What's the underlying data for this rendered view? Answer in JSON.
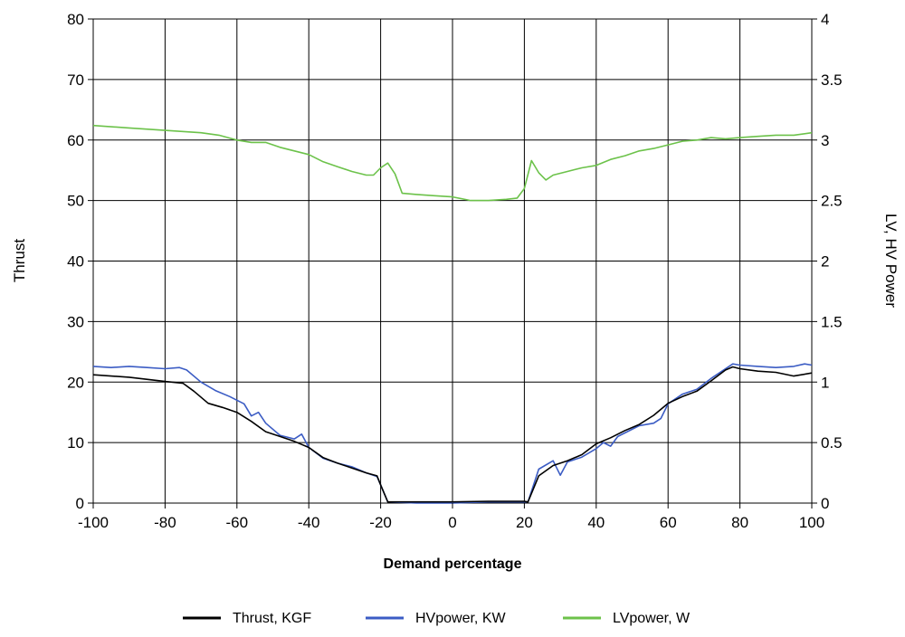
{
  "chart_data": {
    "type": "line",
    "xlabel": "Demand percentage",
    "ylabel_left": "Thrust",
    "ylabel_right": "LV, HV Power",
    "xlim": [
      -100,
      100
    ],
    "ylim_left": [
      0,
      80
    ],
    "ylim_right": [
      0,
      4
    ],
    "xticks": [
      -100,
      -80,
      -60,
      -40,
      -20,
      0,
      20,
      40,
      60,
      80,
      100
    ],
    "xtick_labels": [
      "-100",
      "-80",
      "-60",
      "-40",
      "-20",
      "0",
      "20",
      "40",
      "60",
      "80",
      "100"
    ],
    "yticks_left": [
      0,
      10,
      20,
      30,
      40,
      50,
      60,
      70,
      80
    ],
    "ytick_labels_left": [
      "0",
      "10",
      "20",
      "30",
      "40",
      "50",
      "60",
      "70",
      "80"
    ],
    "yticks_right": [
      0,
      0.5,
      1,
      1.5,
      2,
      2.5,
      3,
      3.5,
      4
    ],
    "ytick_labels_right": [
      "0",
      "0.5",
      "1",
      "1.5",
      "2",
      "2.5",
      "3",
      "3.5",
      "4"
    ],
    "grid": true,
    "legend_position": "bottom-center",
    "series": [
      {
        "name": "Thrust, KGF",
        "axis": "left",
        "color": "#000000",
        "points": [
          [
            -100,
            21.2
          ],
          [
            -90,
            20.8
          ],
          [
            -80,
            20.1
          ],
          [
            -75,
            19.8
          ],
          [
            -72,
            18.5
          ],
          [
            -68,
            16.5
          ],
          [
            -64,
            15.8
          ],
          [
            -60,
            15.0
          ],
          [
            -56,
            13.5
          ],
          [
            -52,
            11.8
          ],
          [
            -48,
            11.0
          ],
          [
            -44,
            10.2
          ],
          [
            -40,
            9.2
          ],
          [
            -36,
            7.5
          ],
          [
            -32,
            6.6
          ],
          [
            -28,
            5.8
          ],
          [
            -24,
            5.0
          ],
          [
            -21,
            4.5
          ],
          [
            -20,
            3.0
          ],
          [
            -18,
            0.2
          ],
          [
            -10,
            0.2
          ],
          [
            0,
            0.2
          ],
          [
            10,
            0.3
          ],
          [
            20,
            0.3
          ],
          [
            21,
            0.2
          ],
          [
            24,
            4.5
          ],
          [
            28,
            6.2
          ],
          [
            32,
            7.0
          ],
          [
            36,
            8.0
          ],
          [
            40,
            9.8
          ],
          [
            44,
            10.8
          ],
          [
            48,
            12.0
          ],
          [
            52,
            13.0
          ],
          [
            56,
            14.5
          ],
          [
            60,
            16.5
          ],
          [
            64,
            17.6
          ],
          [
            68,
            18.5
          ],
          [
            72,
            20.2
          ],
          [
            76,
            22.0
          ],
          [
            78,
            22.5
          ],
          [
            80,
            22.2
          ],
          [
            85,
            21.8
          ],
          [
            90,
            21.6
          ],
          [
            95,
            21.0
          ],
          [
            100,
            21.5
          ]
        ]
      },
      {
        "name": "HVpower, KW",
        "axis": "right",
        "color": "#3b5cc4",
        "points": [
          [
            -100,
            1.13
          ],
          [
            -95,
            1.12
          ],
          [
            -90,
            1.13
          ],
          [
            -85,
            1.12
          ],
          [
            -80,
            1.11
          ],
          [
            -76,
            1.12
          ],
          [
            -74,
            1.1
          ],
          [
            -70,
            1.0
          ],
          [
            -66,
            0.93
          ],
          [
            -62,
            0.88
          ],
          [
            -58,
            0.82
          ],
          [
            -56,
            0.72
          ],
          [
            -54,
            0.75
          ],
          [
            -52,
            0.66
          ],
          [
            -48,
            0.56
          ],
          [
            -44,
            0.53
          ],
          [
            -42,
            0.57
          ],
          [
            -40,
            0.46
          ],
          [
            -36,
            0.37
          ],
          [
            -32,
            0.33
          ],
          [
            -28,
            0.3
          ],
          [
            -24,
            0.25
          ],
          [
            -21,
            0.22
          ],
          [
            -20,
            0.15
          ],
          [
            -18,
            0.01
          ],
          [
            -10,
            0.0
          ],
          [
            0,
            0.0
          ],
          [
            10,
            0.01
          ],
          [
            20,
            0.01
          ],
          [
            21,
            0.01
          ],
          [
            24,
            0.28
          ],
          [
            28,
            0.35
          ],
          [
            30,
            0.23
          ],
          [
            32,
            0.34
          ],
          [
            36,
            0.38
          ],
          [
            40,
            0.45
          ],
          [
            42,
            0.5
          ],
          [
            44,
            0.47
          ],
          [
            46,
            0.55
          ],
          [
            48,
            0.58
          ],
          [
            52,
            0.64
          ],
          [
            56,
            0.66
          ],
          [
            58,
            0.7
          ],
          [
            60,
            0.82
          ],
          [
            64,
            0.9
          ],
          [
            68,
            0.94
          ],
          [
            72,
            1.03
          ],
          [
            76,
            1.11
          ],
          [
            78,
            1.15
          ],
          [
            80,
            1.14
          ],
          [
            85,
            1.13
          ],
          [
            90,
            1.12
          ],
          [
            95,
            1.13
          ],
          [
            98,
            1.15
          ],
          [
            100,
            1.14
          ]
        ]
      },
      {
        "name": "LVpower, W",
        "axis": "right",
        "color": "#6cc24a",
        "points": [
          [
            -100,
            3.12
          ],
          [
            -90,
            3.1
          ],
          [
            -80,
            3.08
          ],
          [
            -70,
            3.06
          ],
          [
            -65,
            3.04
          ],
          [
            -60,
            3.0
          ],
          [
            -56,
            2.98
          ],
          [
            -52,
            2.98
          ],
          [
            -48,
            2.94
          ],
          [
            -44,
            2.91
          ],
          [
            -40,
            2.88
          ],
          [
            -36,
            2.82
          ],
          [
            -32,
            2.78
          ],
          [
            -28,
            2.74
          ],
          [
            -24,
            2.71
          ],
          [
            -22,
            2.71
          ],
          [
            -20,
            2.77
          ],
          [
            -18,
            2.81
          ],
          [
            -16,
            2.72
          ],
          [
            -14,
            2.56
          ],
          [
            -10,
            2.55
          ],
          [
            -5,
            2.54
          ],
          [
            0,
            2.53
          ],
          [
            5,
            2.5
          ],
          [
            10,
            2.5
          ],
          [
            15,
            2.51
          ],
          [
            18,
            2.52
          ],
          [
            20,
            2.6
          ],
          [
            22,
            2.83
          ],
          [
            24,
            2.73
          ],
          [
            26,
            2.67
          ],
          [
            28,
            2.71
          ],
          [
            32,
            2.74
          ],
          [
            36,
            2.77
          ],
          [
            40,
            2.79
          ],
          [
            44,
            2.84
          ],
          [
            48,
            2.87
          ],
          [
            52,
            2.91
          ],
          [
            56,
            2.93
          ],
          [
            60,
            2.96
          ],
          [
            64,
            2.99
          ],
          [
            68,
            3.0
          ],
          [
            72,
            3.02
          ],
          [
            76,
            3.01
          ],
          [
            80,
            3.02
          ],
          [
            85,
            3.03
          ],
          [
            90,
            3.04
          ],
          [
            95,
            3.04
          ],
          [
            100,
            3.06
          ]
        ]
      }
    ]
  }
}
